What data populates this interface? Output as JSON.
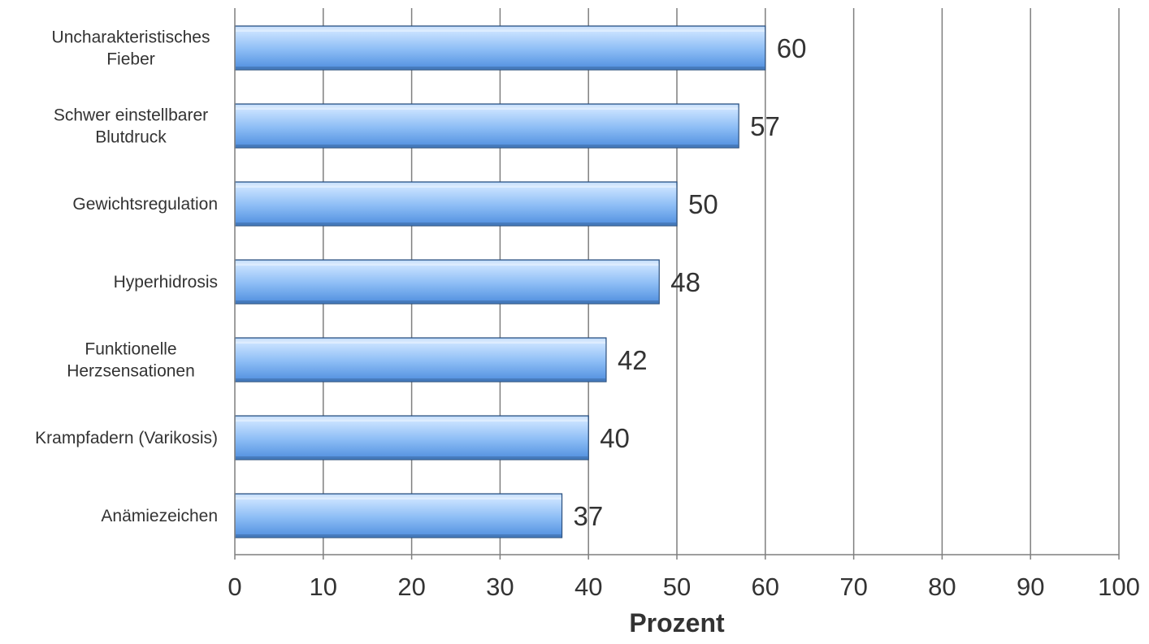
{
  "chart_data": {
    "type": "bar",
    "orientation": "horizontal",
    "categories": [
      [
        "Uncharakteristisches",
        "Fieber"
      ],
      [
        "Schwer einstellbarer",
        "Blutdruck"
      ],
      [
        "Gewichtsregulation"
      ],
      [
        "Hyperhidrosis"
      ],
      [
        "Funktionelle",
        "Herzsensationen"
      ],
      [
        "Krampfadern (Varikosis)"
      ],
      [
        "Anämiezeichen"
      ]
    ],
    "values": [
      60,
      57,
      50,
      48,
      42,
      40,
      37
    ],
    "value_labels": [
      "60",
      "57",
      "50",
      "48",
      "42",
      "40",
      "37"
    ],
    "xlabel": "Prozent",
    "ylabel": "",
    "xlim": [
      0,
      100
    ],
    "xticks": [
      0,
      10,
      20,
      30,
      40,
      50,
      60,
      70,
      80,
      90,
      100
    ],
    "xtick_labels": [
      "0",
      "10",
      "20",
      "30",
      "40",
      "50",
      "60",
      "70",
      "80",
      "90",
      "100"
    ],
    "grid": "vertical",
    "legend": "none",
    "colors": {
      "bar_top": "#c9e2ff",
      "bar_mid": "#8bbcf5",
      "bar_bottom": "#4f8ede",
      "bar_edge": "#2c4f7c",
      "gridline": "#7f7f7f",
      "axis": "#7f7f7f",
      "text": "#333333"
    }
  }
}
